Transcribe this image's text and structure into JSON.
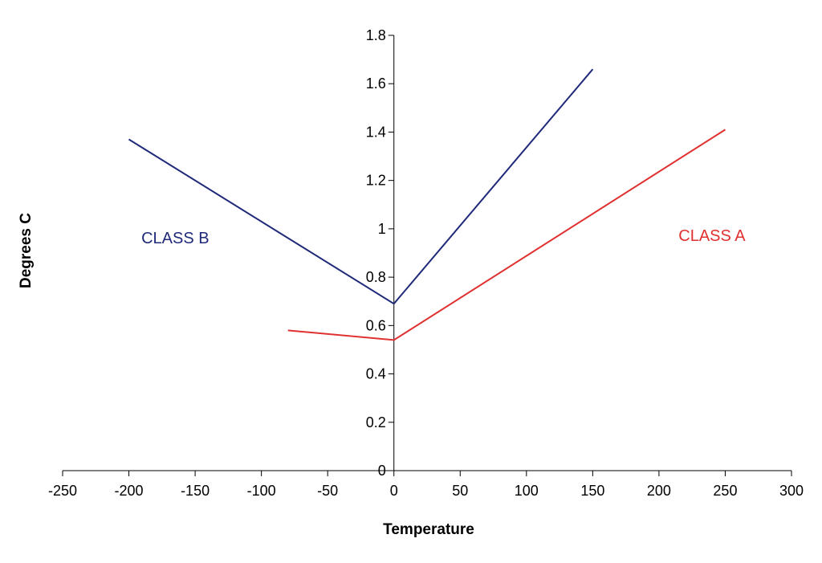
{
  "chart_data": {
    "type": "line",
    "title": "",
    "xlabel": "Temperature",
    "ylabel": "Degrees C",
    "xlim": [
      -250,
      300
    ],
    "ylim": [
      0,
      1.8
    ],
    "x_ticks": [
      -250,
      -200,
      -150,
      -100,
      -50,
      0,
      50,
      100,
      150,
      200,
      250,
      300
    ],
    "x_tick_labels": [
      "-250",
      "-200",
      "-150",
      "-100",
      "-50",
      "0",
      "50",
      "100",
      "150",
      "200",
      "250",
      "300"
    ],
    "y_ticks": [
      0,
      0.2,
      0.4,
      0.6,
      0.8,
      1,
      1.2,
      1.4,
      1.6,
      1.8
    ],
    "y_tick_labels": [
      "0",
      "0.2",
      "0.4",
      "0.6",
      "0.8",
      "1",
      "1.2",
      "1.4",
      "1.6",
      "1.8"
    ],
    "grid": false,
    "legend": "none",
    "series": [
      {
        "name": "CLASS B",
        "color": "#1f2a7a",
        "points": [
          [
            -200,
            1.37
          ],
          [
            0,
            0.69
          ],
          [
            150,
            1.66
          ]
        ]
      },
      {
        "name": "CLASS A",
        "color": "#e03030",
        "points": [
          [
            -80,
            0.58
          ],
          [
            0,
            0.54
          ],
          [
            250,
            1.41
          ]
        ]
      }
    ],
    "annotations": [
      {
        "text": "CLASS B",
        "series": 0,
        "x": -165,
        "y": 0.94
      },
      {
        "text": "CLASS A",
        "series": 1,
        "x": 240,
        "y": 0.95
      }
    ]
  }
}
